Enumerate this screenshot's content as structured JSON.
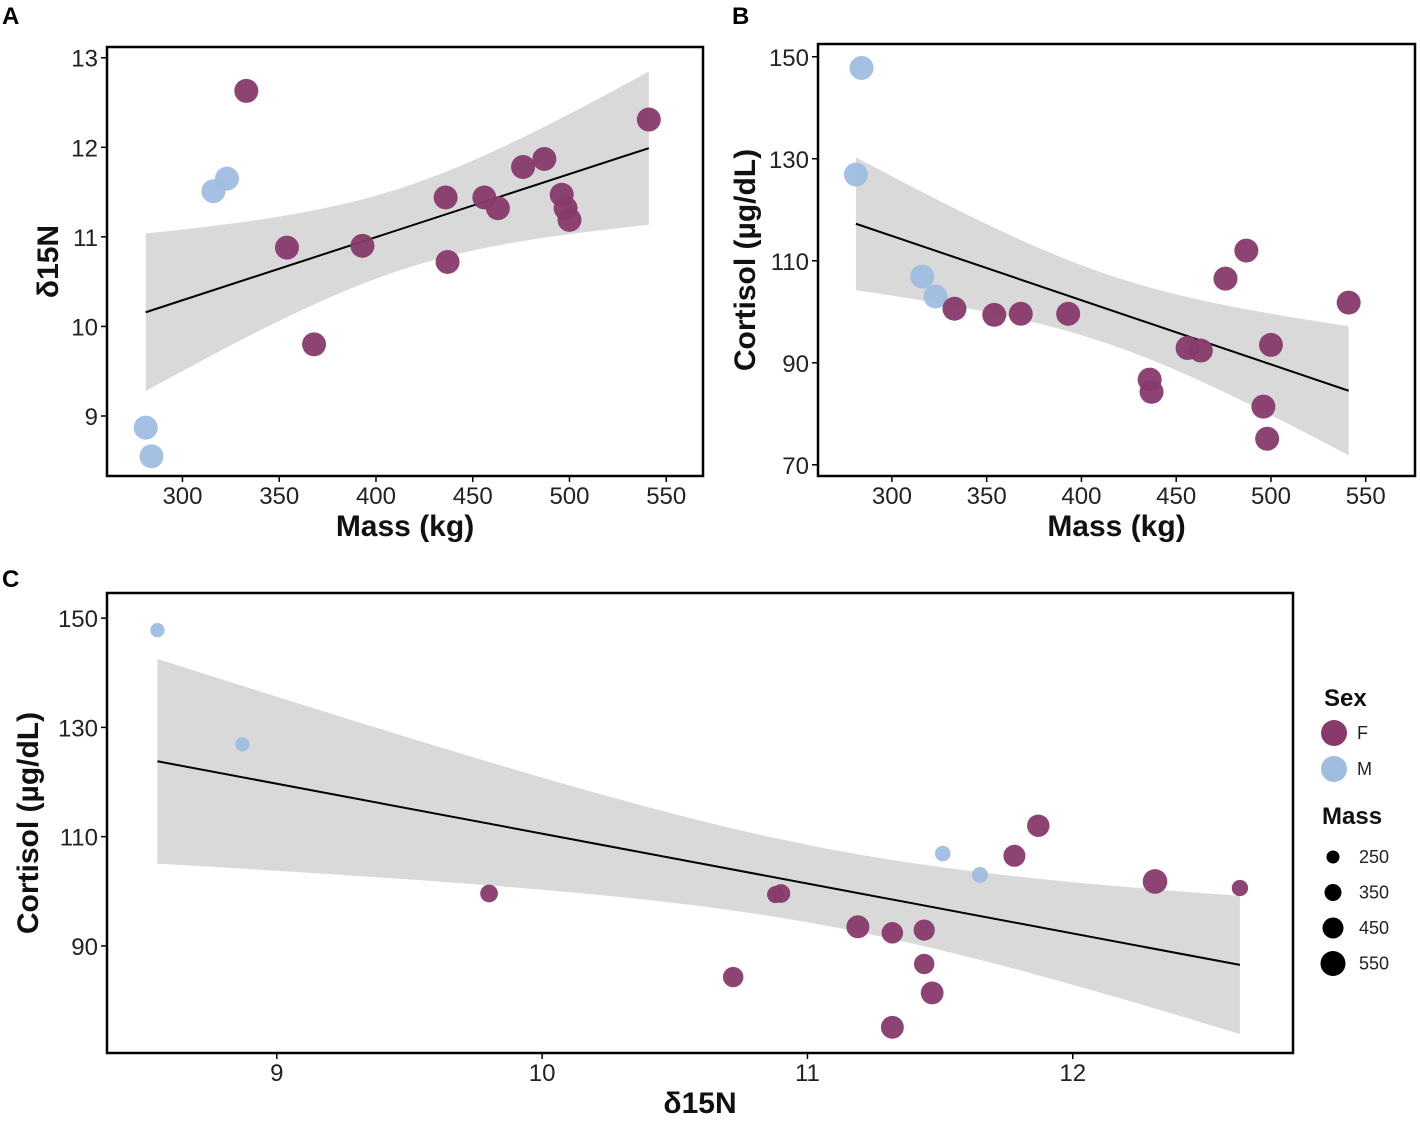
{
  "colors": {
    "F": "#883a6c",
    "M": "#9fbde0",
    "band": "#d9d9d9",
    "line": "#000000"
  },
  "chart_data": {
    "type": "scatter",
    "individuals": [
      {
        "sex": "M",
        "mass": 281,
        "d15N": 8.87,
        "cortisol": 126.9
      },
      {
        "sex": "M",
        "mass": 284,
        "d15N": 8.55,
        "cortisol": 147.8
      },
      {
        "sex": "M",
        "mass": 316,
        "d15N": 11.51,
        "cortisol": 106.9
      },
      {
        "sex": "M",
        "mass": 323,
        "d15N": 11.65,
        "cortisol": 103.0
      },
      {
        "sex": "F",
        "mass": 333,
        "d15N": 12.63,
        "cortisol": 100.6
      },
      {
        "sex": "F",
        "mass": 354,
        "d15N": 10.88,
        "cortisol": 99.4
      },
      {
        "sex": "F",
        "mass": 368,
        "d15N": 9.8,
        "cortisol": 99.6
      },
      {
        "sex": "F",
        "mass": 393,
        "d15N": 10.9,
        "cortisol": 99.6
      },
      {
        "sex": "F",
        "mass": 436,
        "d15N": 11.44,
        "cortisol": 86.7
      },
      {
        "sex": "F",
        "mass": 437,
        "d15N": 10.72,
        "cortisol": 84.3
      },
      {
        "sex": "F",
        "mass": 456,
        "d15N": 11.44,
        "cortisol": 92.9
      },
      {
        "sex": "F",
        "mass": 463,
        "d15N": 11.32,
        "cortisol": 92.4
      },
      {
        "sex": "F",
        "mass": 476,
        "d15N": 11.78,
        "cortisol": 106.5
      },
      {
        "sex": "F",
        "mass": 487,
        "d15N": 11.87,
        "cortisol": 112.0
      },
      {
        "sex": "F",
        "mass": 496,
        "d15N": 11.47,
        "cortisol": 81.4
      },
      {
        "sex": "F",
        "mass": 498,
        "d15N": 11.32,
        "cortisol": 75.1
      },
      {
        "sex": "F",
        "mass": 500,
        "d15N": 11.19,
        "cortisol": 93.5
      },
      {
        "sex": "F",
        "mass": 541,
        "d15N": 12.31,
        "cortisol": 101.8
      }
    ],
    "panels": [
      {
        "label": "A",
        "x": "mass",
        "y": "d15N",
        "xlabel": "Mass (kg)",
        "ylabel": "δ15N",
        "xlim": [
          261,
          569
        ],
        "ylim": [
          8.33,
          13.12
        ],
        "xticks": [
          300,
          350,
          400,
          450,
          500,
          550
        ],
        "yticks": [
          9,
          10,
          11,
          12,
          13
        ],
        "xtick_labels": [
          "300",
          "350",
          "400",
          "450",
          "500",
          "550"
        ],
        "ytick_labels": [
          "9",
          "10",
          "11",
          "12",
          "13"
        ],
        "fit": "linear regression with 95% CI"
      },
      {
        "label": "B",
        "x": "mass",
        "y": "cortisol",
        "xlabel": "Mass (kg)",
        "ylabel": "Cortisol (µg/dL)",
        "xlim": [
          261,
          576
        ],
        "ylim": [
          67.8,
          152.5
        ],
        "xticks": [
          300,
          350,
          400,
          450,
          500,
          550
        ],
        "yticks": [
          70,
          90,
          110,
          130,
          150
        ],
        "xtick_labels": [
          "300",
          "350",
          "400",
          "450",
          "500",
          "550"
        ],
        "ytick_labels": [
          "70",
          "90",
          "110",
          "130",
          "150"
        ],
        "fit": "linear regression with 95% CI"
      },
      {
        "label": "C",
        "x": "d15N",
        "y": "cortisol",
        "xlabel": "δ15N",
        "ylabel": "Cortisol (µg/dL)",
        "xlim": [
          8.36,
          12.83
        ],
        "ylim": [
          70.4,
          154.6
        ],
        "xticks": [
          9,
          10,
          11,
          12
        ],
        "yticks": [
          90,
          110,
          130,
          150
        ],
        "xtick_labels": [
          "9",
          "10",
          "11",
          "12"
        ],
        "ytick_labels": [
          "90",
          "110",
          "130",
          "150"
        ],
        "fit": "linear regression with 95% CI",
        "size_by": "mass"
      }
    ],
    "legend": {
      "placement": "right",
      "sex_title": "Sex",
      "sex_items": [
        "F",
        "M"
      ],
      "mass_title": "Mass",
      "mass_items": [
        "250",
        "350",
        "450",
        "550"
      ]
    }
  }
}
